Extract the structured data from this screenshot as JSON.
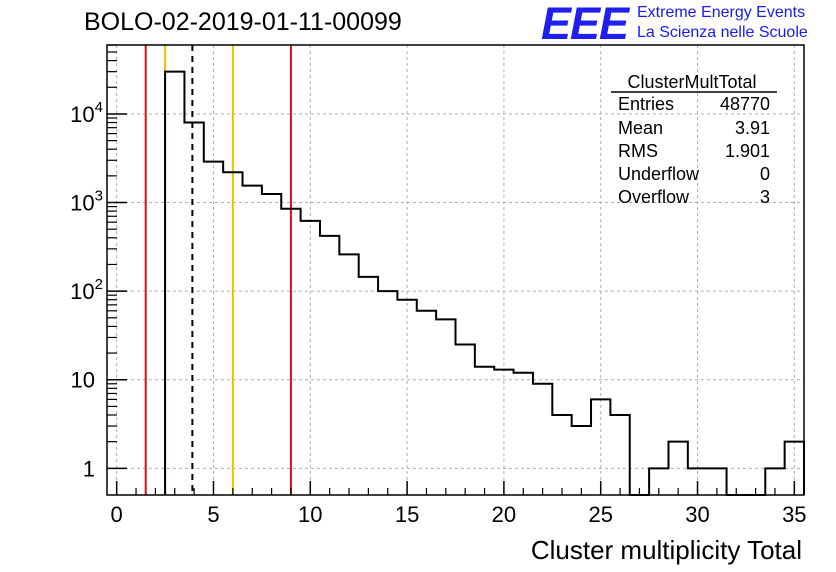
{
  "header": {
    "run_title": "BOLO-02-2019-01-11-00099",
    "logo_text": "EEE",
    "logo_line_1": "Extreme Energy Events",
    "logo_line_2": "La Scienza nelle Scuole"
  },
  "stats_box": {
    "title": "ClusterMultTotal",
    "rows": [
      {
        "label": "Entries",
        "value": "48770"
      },
      {
        "label": "Mean",
        "value": "3.91"
      },
      {
        "label": "RMS",
        "value": "1.901"
      },
      {
        "label": "Underflow",
        "value": "0"
      },
      {
        "label": "Overflow",
        "value": "3"
      }
    ]
  },
  "chart_data": {
    "type": "histogram",
    "xlabel": "Cluster multiplicity Total",
    "ylabel": "",
    "xlim": [
      -0.5,
      35.5
    ],
    "ylim": [
      0.5,
      60000
    ],
    "yscale": "log",
    "grid": true,
    "bin_width": 1,
    "bins": [
      {
        "x": 3,
        "count": 30000
      },
      {
        "x": 4,
        "count": 8000
      },
      {
        "x": 5,
        "count": 2900
      },
      {
        "x": 6,
        "count": 2200
      },
      {
        "x": 7,
        "count": 1550
      },
      {
        "x": 8,
        "count": 1250
      },
      {
        "x": 9,
        "count": 850
      },
      {
        "x": 10,
        "count": 620
      },
      {
        "x": 11,
        "count": 420
      },
      {
        "x": 12,
        "count": 260
      },
      {
        "x": 13,
        "count": 145
      },
      {
        "x": 14,
        "count": 100
      },
      {
        "x": 15,
        "count": 80
      },
      {
        "x": 16,
        "count": 60
      },
      {
        "x": 17,
        "count": 48
      },
      {
        "x": 18,
        "count": 25
      },
      {
        "x": 19,
        "count": 14
      },
      {
        "x": 20,
        "count": 13
      },
      {
        "x": 21,
        "count": 12
      },
      {
        "x": 22,
        "count": 9
      },
      {
        "x": 23,
        "count": 4
      },
      {
        "x": 24,
        "count": 3
      },
      {
        "x": 25,
        "count": 6
      },
      {
        "x": 26,
        "count": 4
      },
      {
        "x": 27,
        "count": 0
      },
      {
        "x": 28,
        "count": 1
      },
      {
        "x": 29,
        "count": 2
      },
      {
        "x": 30,
        "count": 1
      },
      {
        "x": 31,
        "count": 1
      },
      {
        "x": 32,
        "count": 0
      },
      {
        "x": 33,
        "count": 0
      },
      {
        "x": 34,
        "count": 1
      },
      {
        "x": 35,
        "count": 2
      }
    ],
    "x_ticks": [
      "0",
      "5",
      "10",
      "15",
      "20",
      "25",
      "30",
      "35"
    ],
    "y_ticks": [
      {
        "value": 1,
        "base": "1",
        "exp": ""
      },
      {
        "value": 10,
        "base": "10",
        "exp": ""
      },
      {
        "value": 100,
        "base": "10",
        "exp": "2"
      },
      {
        "value": 1000,
        "base": "10",
        "exp": "3"
      },
      {
        "value": 10000,
        "base": "10",
        "exp": "4"
      }
    ],
    "reference_lines": [
      {
        "x": 1.5,
        "color": "#e01010",
        "style": "solid"
      },
      {
        "x": 2.5,
        "color": "#f0c000",
        "style": "solid"
      },
      {
        "x": 3.91,
        "color": "#000000",
        "style": "dashed"
      },
      {
        "x": 6.0,
        "color": "#f0c000",
        "style": "solid"
      },
      {
        "x": 9.0,
        "color": "#e01010",
        "style": "solid"
      }
    ],
    "colors": {
      "histogram": "#000000",
      "grid": "#b0b0b0"
    }
  }
}
